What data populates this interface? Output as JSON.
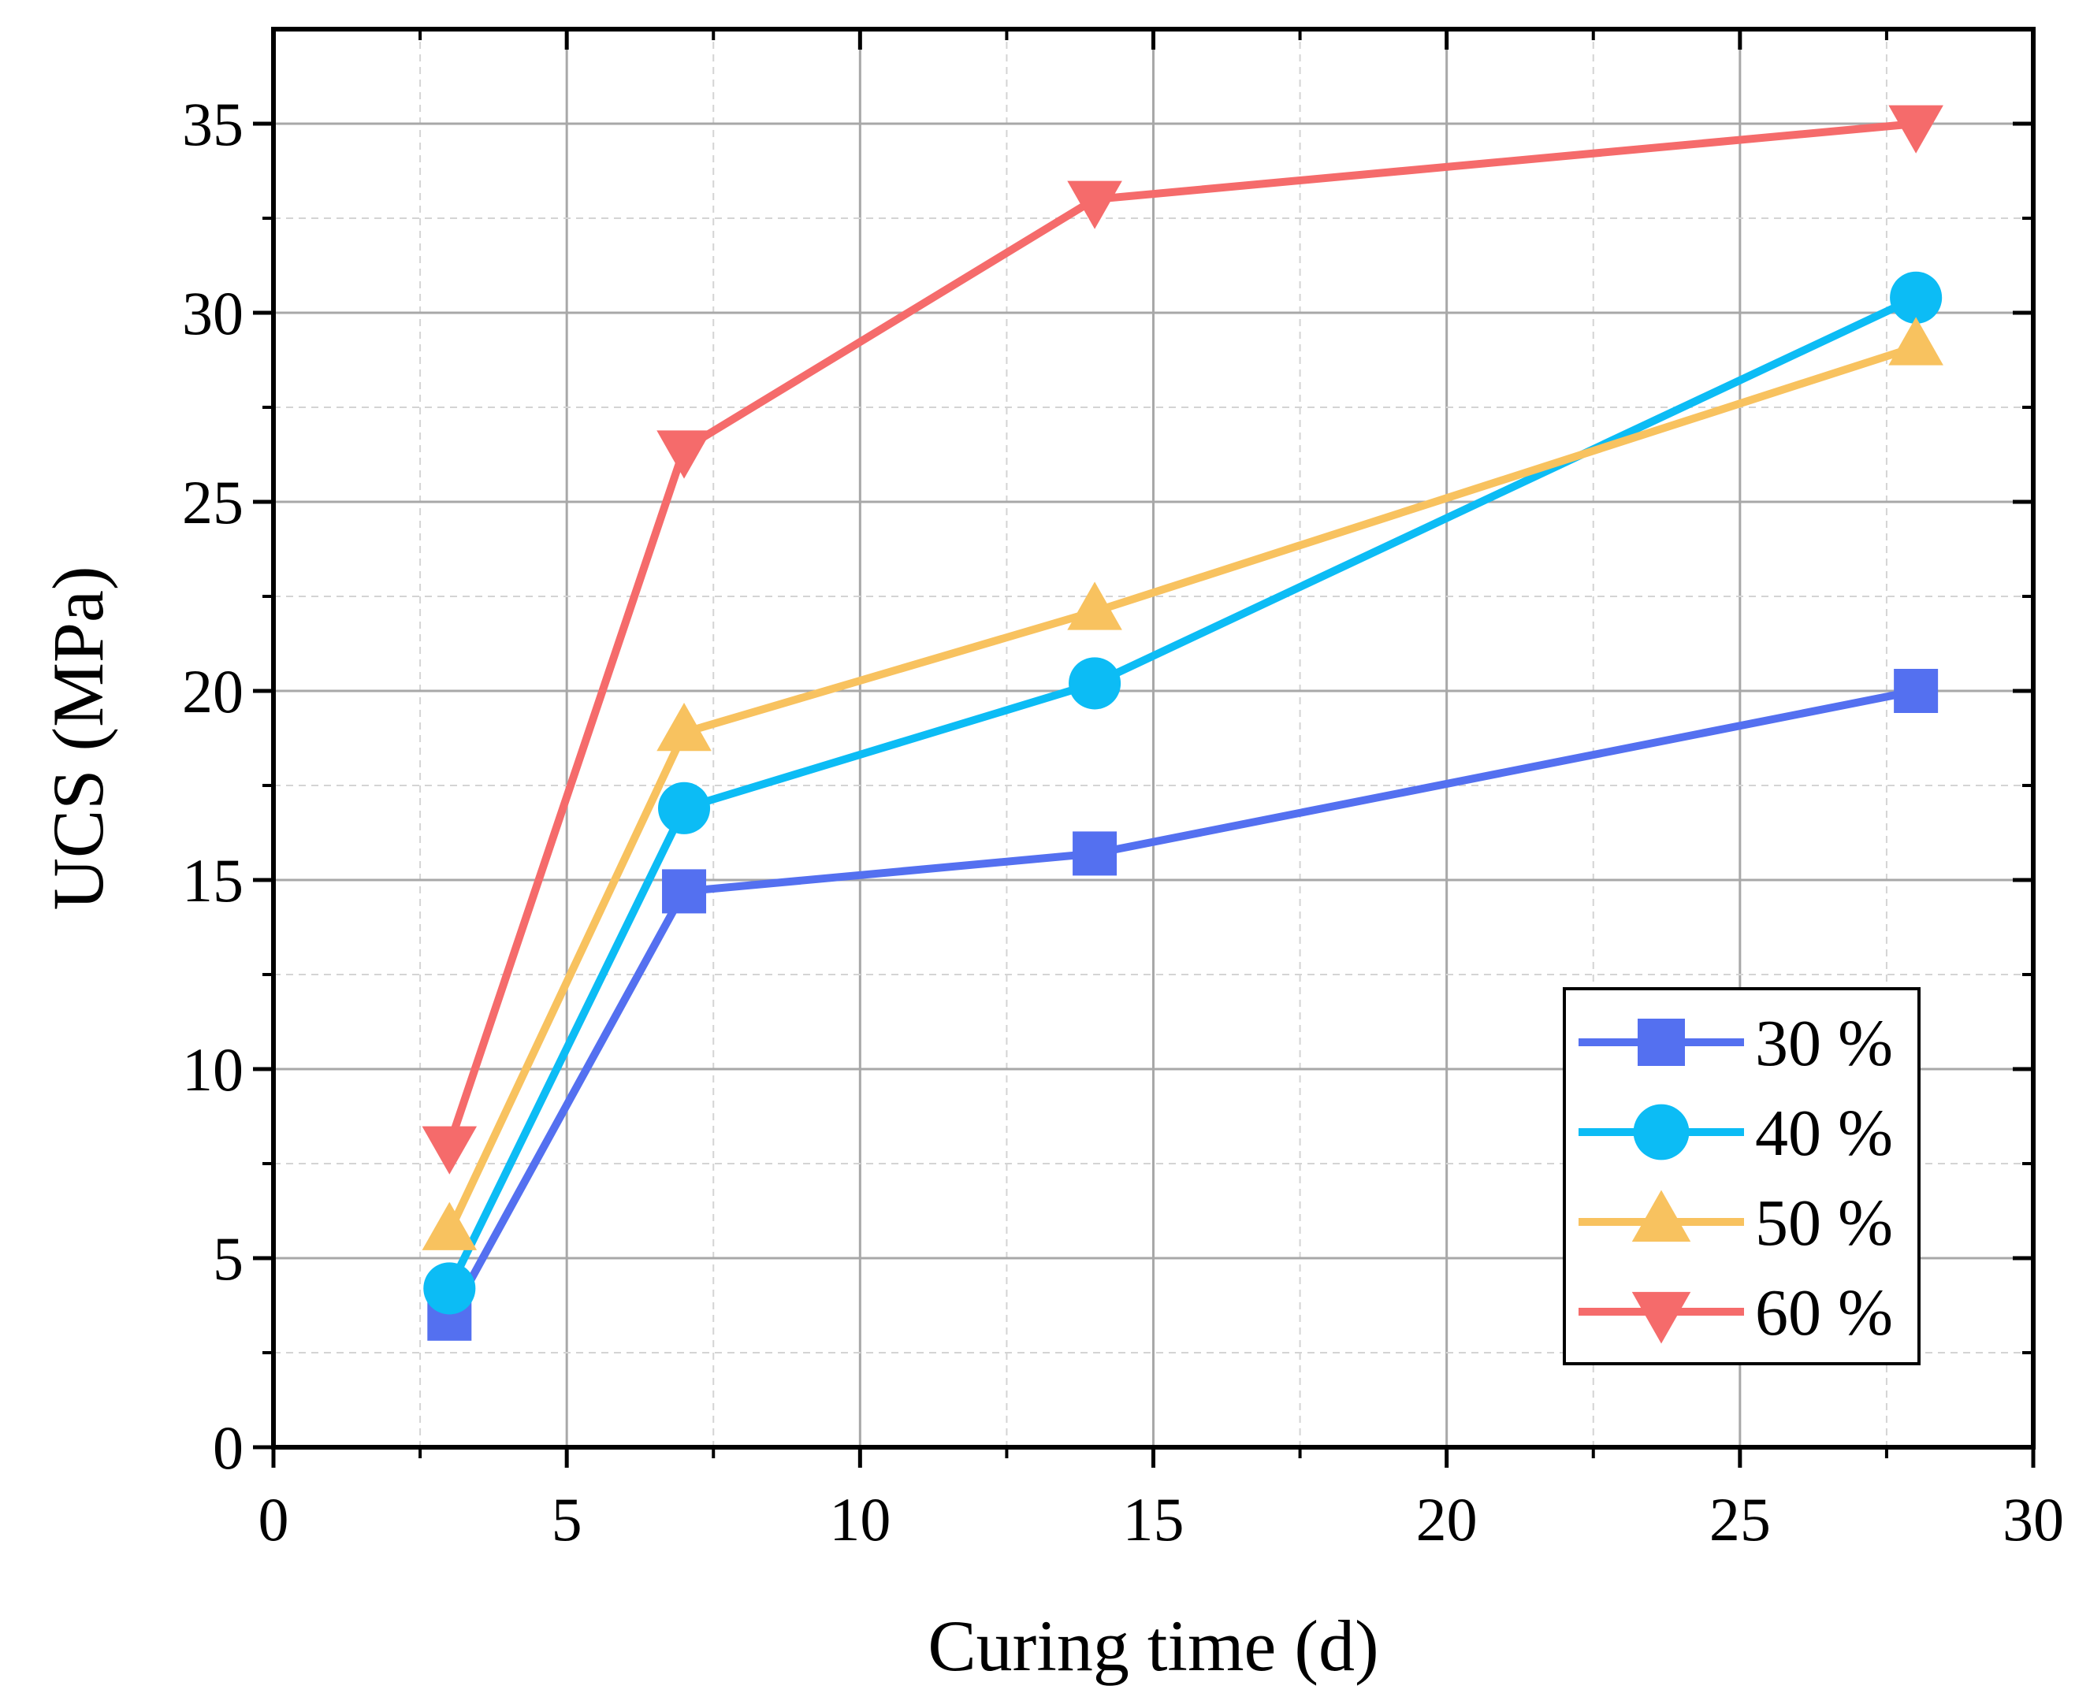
{
  "chart_data": {
    "type": "line",
    "title": "",
    "xlabel": "Curing time (d)",
    "ylabel": "UCS (MPa)",
    "xlim": [
      0,
      30
    ],
    "ylim": [
      0,
      37.5
    ],
    "xticks": [
      0,
      5,
      10,
      15,
      20,
      25,
      30
    ],
    "yticks": [
      0,
      5,
      10,
      15,
      20,
      25,
      30,
      35
    ],
    "xtick_labels": [
      "0",
      "5",
      "10",
      "15",
      "20",
      "25",
      "30"
    ],
    "ytick_labels": [
      "0",
      "5",
      "10",
      "15",
      "20",
      "25",
      "30",
      "35"
    ],
    "grid": true,
    "legend_position": "bottom-right",
    "x": [
      3,
      7,
      14,
      28
    ],
    "series": [
      {
        "name": "30 %",
        "values": [
          3.4,
          14.7,
          15.7,
          20.0
        ],
        "color": "#5470f0",
        "marker": "square"
      },
      {
        "name": "40 %",
        "values": [
          4.2,
          16.9,
          20.2,
          30.4
        ],
        "color": "#0cbcf5",
        "marker": "circle"
      },
      {
        "name": "50 %",
        "values": [
          5.7,
          18.9,
          22.1,
          29.1
        ],
        "color": "#f8c25f",
        "marker": "triangle-up"
      },
      {
        "name": "60 %",
        "values": [
          8.0,
          26.4,
          33.0,
          35.0
        ],
        "color": "#f56b6b",
        "marker": "triangle-down"
      }
    ]
  }
}
